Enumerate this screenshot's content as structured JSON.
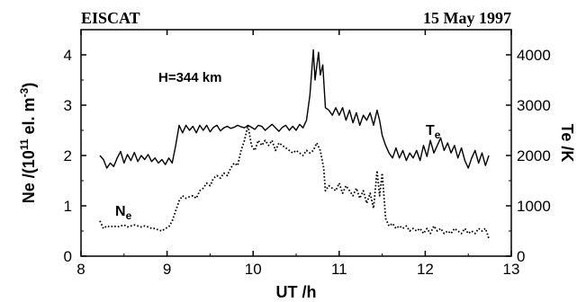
{
  "header": {
    "left_title": "EISCAT",
    "right_title": "15 May 1997"
  },
  "chart_data": {
    "type": "line",
    "annotation": "H=344 km",
    "xlabel": "UT /h",
    "ylabel_left": {
      "main": "Ne /(10",
      "sup1": "11",
      "mid": " el. m",
      "sup2": "-3",
      "end": ")"
    },
    "ylabel_right": "Te /K",
    "xlim": [
      8,
      13
    ],
    "ylim_left": [
      0,
      4.5
    ],
    "ylim_right": [
      0,
      4500
    ],
    "x_ticks": [
      8,
      9,
      10,
      11,
      12,
      13
    ],
    "y_left_ticks": [
      0,
      1,
      2,
      3,
      4
    ],
    "y_right_ticks": [
      0,
      1000,
      2000,
      3000,
      4000
    ],
    "grid": false,
    "series": [
      {
        "name_main": "T",
        "name_sub": "e",
        "axis": "right",
        "style": "solid",
        "color": "#000000",
        "points": [
          [
            8.22,
            2000
          ],
          [
            8.26,
            1920
          ],
          [
            8.3,
            1750
          ],
          [
            8.34,
            1850
          ],
          [
            8.38,
            1780
          ],
          [
            8.42,
            1950
          ],
          [
            8.46,
            2080
          ],
          [
            8.5,
            1850
          ],
          [
            8.54,
            2020
          ],
          [
            8.58,
            1900
          ],
          [
            8.62,
            2060
          ],
          [
            8.66,
            1880
          ],
          [
            8.7,
            2000
          ],
          [
            8.74,
            1920
          ],
          [
            8.78,
            2020
          ],
          [
            8.82,
            1880
          ],
          [
            8.86,
            1950
          ],
          [
            8.9,
            1850
          ],
          [
            8.94,
            1920
          ],
          [
            8.98,
            1820
          ],
          [
            9.02,
            1950
          ],
          [
            9.06,
            1850
          ],
          [
            9.1,
            2200
          ],
          [
            9.14,
            2600
          ],
          [
            9.18,
            2450
          ],
          [
            9.22,
            2600
          ],
          [
            9.26,
            2500
          ],
          [
            9.3,
            2580
          ],
          [
            9.34,
            2450
          ],
          [
            9.38,
            2600
          ],
          [
            9.42,
            2500
          ],
          [
            9.46,
            2600
          ],
          [
            9.5,
            2470
          ],
          [
            9.54,
            2560
          ],
          [
            9.58,
            2600
          ],
          [
            9.62,
            2490
          ],
          [
            9.66,
            2550
          ],
          [
            9.7,
            2580
          ],
          [
            9.74,
            2540
          ],
          [
            9.78,
            2560
          ],
          [
            9.82,
            2600
          ],
          [
            9.86,
            2570
          ],
          [
            9.9,
            2550
          ],
          [
            9.94,
            2600
          ],
          [
            9.98,
            2560
          ],
          [
            10.02,
            2520
          ],
          [
            10.06,
            2600
          ],
          [
            10.1,
            2580
          ],
          [
            10.14,
            2500
          ],
          [
            10.18,
            2560
          ],
          [
            10.22,
            2620
          ],
          [
            10.26,
            2550
          ],
          [
            10.3,
            2480
          ],
          [
            10.34,
            2560
          ],
          [
            10.38,
            2600
          ],
          [
            10.42,
            2500
          ],
          [
            10.46,
            2580
          ],
          [
            10.5,
            2500
          ],
          [
            10.54,
            2620
          ],
          [
            10.58,
            2550
          ],
          [
            10.62,
            2700
          ],
          [
            10.66,
            3200
          ],
          [
            10.7,
            4100
          ],
          [
            10.72,
            3500
          ],
          [
            10.76,
            4050
          ],
          [
            10.78,
            3600
          ],
          [
            10.81,
            3800
          ],
          [
            10.84,
            2950
          ],
          [
            10.88,
            2900
          ],
          [
            10.92,
            2800
          ],
          [
            10.96,
            2950
          ],
          [
            11.0,
            2800
          ],
          [
            11.04,
            2950
          ],
          [
            11.08,
            2700
          ],
          [
            11.12,
            2900
          ],
          [
            11.16,
            2650
          ],
          [
            11.2,
            2850
          ],
          [
            11.24,
            2600
          ],
          [
            11.28,
            2800
          ],
          [
            11.32,
            2700
          ],
          [
            11.36,
            2850
          ],
          [
            11.4,
            2600
          ],
          [
            11.44,
            2900
          ],
          [
            11.47,
            2700
          ],
          [
            11.5,
            2400
          ],
          [
            11.54,
            2200
          ],
          [
            11.58,
            2050
          ],
          [
            11.62,
            1950
          ],
          [
            11.66,
            2150
          ],
          [
            11.7,
            1950
          ],
          [
            11.74,
            2100
          ],
          [
            11.78,
            1900
          ],
          [
            11.82,
            2050
          ],
          [
            11.86,
            1950
          ],
          [
            11.9,
            2100
          ],
          [
            11.94,
            1900
          ],
          [
            11.98,
            2200
          ],
          [
            12.02,
            1980
          ],
          [
            12.06,
            2300
          ],
          [
            12.1,
            2050
          ],
          [
            12.14,
            2200
          ],
          [
            12.18,
            2350
          ],
          [
            12.22,
            2100
          ],
          [
            12.26,
            2250
          ],
          [
            12.3,
            2050
          ],
          [
            12.34,
            2200
          ],
          [
            12.38,
            1950
          ],
          [
            12.42,
            2150
          ],
          [
            12.46,
            1900
          ],
          [
            12.5,
            1750
          ],
          [
            12.54,
            1950
          ],
          [
            12.58,
            2100
          ],
          [
            12.62,
            1850
          ],
          [
            12.66,
            2050
          ],
          [
            12.7,
            1800
          ],
          [
            12.74,
            2000
          ]
        ]
      },
      {
        "name_main": "N",
        "name_sub": "e",
        "axis": "left",
        "style": "dotted",
        "color": "#000000",
        "points": [
          [
            8.22,
            0.7
          ],
          [
            8.26,
            0.55
          ],
          [
            8.3,
            0.6
          ],
          [
            8.34,
            0.58
          ],
          [
            8.38,
            0.6
          ],
          [
            8.42,
            0.58
          ],
          [
            8.46,
            0.6
          ],
          [
            8.5,
            0.62
          ],
          [
            8.54,
            0.58
          ],
          [
            8.58,
            0.6
          ],
          [
            8.62,
            0.62
          ],
          [
            8.66,
            0.6
          ],
          [
            8.7,
            0.58
          ],
          [
            8.74,
            0.6
          ],
          [
            8.78,
            0.58
          ],
          [
            8.82,
            0.55
          ],
          [
            8.86,
            0.55
          ],
          [
            8.9,
            0.52
          ],
          [
            8.94,
            0.5
          ],
          [
            8.98,
            0.55
          ],
          [
            9.02,
            0.58
          ],
          [
            9.06,
            0.7
          ],
          [
            9.1,
            0.9
          ],
          [
            9.14,
            1.1
          ],
          [
            9.18,
            1.2
          ],
          [
            9.22,
            1.15
          ],
          [
            9.26,
            1.18
          ],
          [
            9.3,
            1.2
          ],
          [
            9.34,
            1.15
          ],
          [
            9.38,
            1.3
          ],
          [
            9.42,
            1.35
          ],
          [
            9.46,
            1.45
          ],
          [
            9.5,
            1.4
          ],
          [
            9.54,
            1.55
          ],
          [
            9.58,
            1.6
          ],
          [
            9.62,
            1.55
          ],
          [
            9.66,
            1.65
          ],
          [
            9.7,
            1.6
          ],
          [
            9.74,
            1.75
          ],
          [
            9.78,
            1.85
          ],
          [
            9.82,
            1.8
          ],
          [
            9.86,
            2.1
          ],
          [
            9.9,
            2.3
          ],
          [
            9.94,
            2.6
          ],
          [
            9.98,
            2.2
          ],
          [
            10.02,
            2.1
          ],
          [
            10.06,
            2.3
          ],
          [
            10.1,
            2.2
          ],
          [
            10.14,
            2.3
          ],
          [
            10.18,
            2.2
          ],
          [
            10.22,
            2.3
          ],
          [
            10.26,
            2.1
          ],
          [
            10.3,
            2.25
          ],
          [
            10.34,
            2.2
          ],
          [
            10.38,
            2.15
          ],
          [
            10.42,
            2.1
          ],
          [
            10.46,
            2.05
          ],
          [
            10.5,
            2.1
          ],
          [
            10.54,
            2.05
          ],
          [
            10.58,
            2.0
          ],
          [
            10.62,
            2.1
          ],
          [
            10.66,
            2.05
          ],
          [
            10.7,
            2.1
          ],
          [
            10.74,
            2.25
          ],
          [
            10.78,
            2.1
          ],
          [
            10.82,
            1.75
          ],
          [
            10.84,
            1.3
          ],
          [
            10.88,
            1.4
          ],
          [
            10.92,
            1.35
          ],
          [
            10.96,
            1.3
          ],
          [
            11.0,
            1.45
          ],
          [
            11.04,
            1.25
          ],
          [
            11.08,
            1.4
          ],
          [
            11.12,
            1.3
          ],
          [
            11.16,
            1.2
          ],
          [
            11.2,
            1.35
          ],
          [
            11.24,
            1.15
          ],
          [
            11.28,
            1.3
          ],
          [
            11.32,
            1.05
          ],
          [
            11.36,
            1.25
          ],
          [
            11.4,
            0.95
          ],
          [
            11.44,
            1.7
          ],
          [
            11.47,
            1.2
          ],
          [
            11.5,
            1.65
          ],
          [
            11.54,
            0.75
          ],
          [
            11.58,
            0.6
          ],
          [
            11.62,
            0.65
          ],
          [
            11.66,
            0.55
          ],
          [
            11.7,
            0.6
          ],
          [
            11.74,
            0.55
          ],
          [
            11.78,
            0.6
          ],
          [
            11.82,
            0.5
          ],
          [
            11.86,
            0.55
          ],
          [
            11.9,
            0.5
          ],
          [
            11.94,
            0.55
          ],
          [
            11.98,
            0.45
          ],
          [
            12.02,
            0.55
          ],
          [
            12.06,
            0.45
          ],
          [
            12.1,
            0.6
          ],
          [
            12.14,
            0.5
          ],
          [
            12.18,
            0.55
          ],
          [
            12.22,
            0.45
          ],
          [
            12.26,
            0.5
          ],
          [
            12.3,
            0.45
          ],
          [
            12.34,
            0.55
          ],
          [
            12.38,
            0.5
          ],
          [
            12.42,
            0.45
          ],
          [
            12.46,
            0.55
          ],
          [
            12.5,
            0.45
          ],
          [
            12.54,
            0.5
          ],
          [
            12.58,
            0.45
          ],
          [
            12.62,
            0.55
          ],
          [
            12.66,
            0.5
          ],
          [
            12.7,
            0.55
          ],
          [
            12.74,
            0.35
          ]
        ]
      }
    ]
  }
}
